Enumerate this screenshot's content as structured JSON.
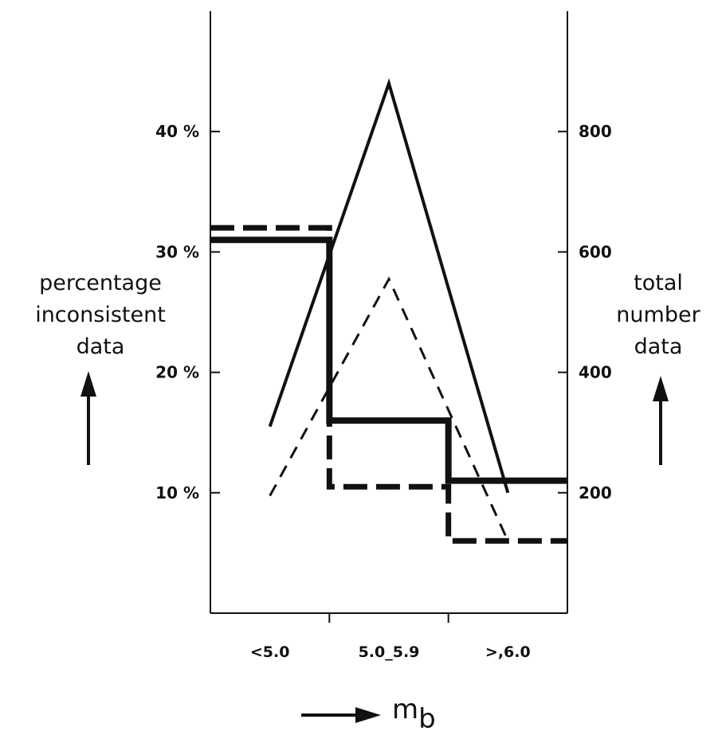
{
  "chart_data": {
    "type": "line",
    "title": "",
    "categories": [
      "<5.0",
      "5.0_5.9",
      ">,6.0"
    ],
    "xlabel": "m_b",
    "ylabel_left": [
      "percentage",
      "inconsistent",
      "data"
    ],
    "ylabel_right": [
      "total",
      "number",
      "data"
    ],
    "left_axis": {
      "range": [
        0,
        50
      ],
      "ticks": [
        10,
        20,
        30,
        40
      ],
      "tick_labels": [
        "10 %",
        "20 %",
        "30 %",
        "40 %"
      ]
    },
    "right_axis": {
      "range": [
        0,
        1000
      ],
      "ticks": [
        200,
        400,
        600,
        800
      ],
      "tick_labels": [
        "200",
        "400",
        "600",
        "800"
      ]
    },
    "series": [
      {
        "axis": "left",
        "style": "thick-solid-step",
        "values": [
          31,
          16,
          11
        ]
      },
      {
        "axis": "left",
        "style": "thick-dashed-step",
        "values": [
          32,
          10.5,
          6
        ]
      },
      {
        "axis": "right",
        "style": "thin-solid-line",
        "x": [
          0.5,
          1.5,
          2.5
        ],
        "values": [
          310,
          880,
          200
        ]
      },
      {
        "axis": "right",
        "style": "thin-dashed-line",
        "x": [
          0.5,
          1.5,
          2.5
        ],
        "values": [
          195,
          555,
          120
        ]
      }
    ],
    "grid": false,
    "legend": "none"
  }
}
